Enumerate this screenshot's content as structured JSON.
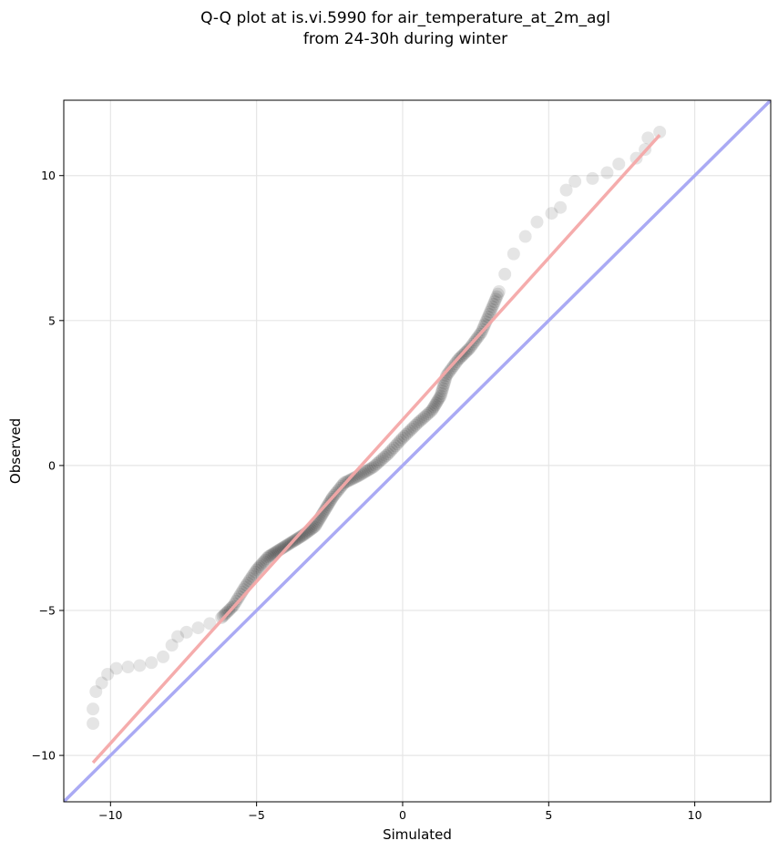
{
  "title_line1": "Q-Q plot at is.vi.5990 for air_temperature_at_2m_agl",
  "title_line2": "from 24-30h during winter",
  "chart_data": {
    "type": "scatter",
    "title": "Q-Q plot at is.vi.5990 for air_temperature_at_2m_agl\nfrom 24-30h during winter",
    "xlabel": "Simulated",
    "ylabel": "Observed",
    "xlim": [
      -11.6,
      12.6
    ],
    "ylim": [
      -11.6,
      12.6
    ],
    "xticks": [
      -10,
      -5,
      0,
      5,
      10
    ],
    "yticks": [
      -10,
      -5,
      0,
      5,
      10
    ],
    "xtick_labels": [
      "−10",
      "−5",
      "0",
      "5",
      "10"
    ],
    "ytick_labels": [
      "−10",
      "−5",
      "0",
      "5",
      "10"
    ],
    "grid": true,
    "colors": {
      "points": "#000000",
      "fit_line": "#f4a8a8",
      "identity_line": "#aaaaf4"
    },
    "quantile_points": [
      {
        "x": -10.6,
        "y": -8.9
      },
      {
        "x": -10.6,
        "y": -8.4
      },
      {
        "x": -10.5,
        "y": -7.8
      },
      {
        "x": -10.3,
        "y": -7.5
      },
      {
        "x": -10.1,
        "y": -7.2
      },
      {
        "x": -9.8,
        "y": -7.0
      },
      {
        "x": -9.4,
        "y": -6.95
      },
      {
        "x": -9.0,
        "y": -6.9
      },
      {
        "x": -8.6,
        "y": -6.8
      },
      {
        "x": -8.2,
        "y": -6.6
      },
      {
        "x": -7.9,
        "y": -6.2
      },
      {
        "x": -7.7,
        "y": -5.9
      },
      {
        "x": -7.4,
        "y": -5.75
      },
      {
        "x": -7.0,
        "y": -5.6
      },
      {
        "x": -6.6,
        "y": -5.45
      },
      {
        "x": -6.2,
        "y": -5.25
      },
      {
        "x": -5.8,
        "y": -4.85
      },
      {
        "x": -5.4,
        "y": -4.2
      },
      {
        "x": -5.0,
        "y": -3.6
      },
      {
        "x": -4.6,
        "y": -3.15
      },
      {
        "x": -4.2,
        "y": -2.9
      },
      {
        "x": -3.8,
        "y": -2.65
      },
      {
        "x": -3.4,
        "y": -2.4
      },
      {
        "x": -3.0,
        "y": -2.1
      },
      {
        "x": -2.7,
        "y": -1.6
      },
      {
        "x": -2.4,
        "y": -1.1
      },
      {
        "x": -2.0,
        "y": -0.6
      },
      {
        "x": -1.5,
        "y": -0.35
      },
      {
        "x": -1.0,
        "y": -0.05
      },
      {
        "x": -0.5,
        "y": 0.4
      },
      {
        "x": 0.0,
        "y": 0.95
      },
      {
        "x": 0.5,
        "y": 1.45
      },
      {
        "x": 1.0,
        "y": 1.9
      },
      {
        "x": 1.3,
        "y": 2.4
      },
      {
        "x": 1.5,
        "y": 3.1
      },
      {
        "x": 1.9,
        "y": 3.65
      },
      {
        "x": 2.3,
        "y": 4.05
      },
      {
        "x": 2.7,
        "y": 4.6
      },
      {
        "x": 3.0,
        "y": 5.3
      },
      {
        "x": 3.3,
        "y": 6.0
      },
      {
        "x": 3.5,
        "y": 6.6
      },
      {
        "x": 3.8,
        "y": 7.3
      },
      {
        "x": 4.2,
        "y": 7.9
      },
      {
        "x": 4.6,
        "y": 8.4
      },
      {
        "x": 5.1,
        "y": 8.7
      },
      {
        "x": 5.4,
        "y": 8.9
      },
      {
        "x": 5.6,
        "y": 9.5
      },
      {
        "x": 5.9,
        "y": 9.8
      },
      {
        "x": 6.5,
        "y": 9.9
      },
      {
        "x": 7.0,
        "y": 10.1
      },
      {
        "x": 7.4,
        "y": 10.4
      },
      {
        "x": 8.0,
        "y": 10.6
      },
      {
        "x": 8.3,
        "y": 10.9
      },
      {
        "x": 8.4,
        "y": 11.3
      },
      {
        "x": 8.8,
        "y": 11.5
      }
    ],
    "fit_line": {
      "x": [
        -10.6,
        8.8
      ],
      "y": [
        -10.25,
        11.4
      ]
    },
    "identity_line": {
      "x": [
        -11.6,
        12.6
      ],
      "y": [
        -11.6,
        12.6
      ]
    }
  }
}
